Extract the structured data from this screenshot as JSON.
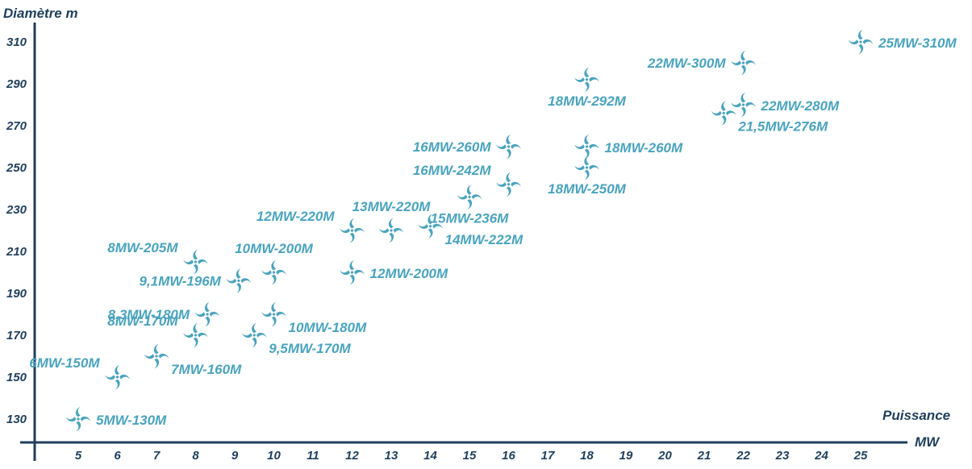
{
  "chart_data": {
    "type": "scatter",
    "title": "",
    "xlabel": "Puissance MW",
    "xlabel_lines": [
      "Puissance",
      "MW"
    ],
    "ylabel": "Diamètre m",
    "x_ticks": [
      "5",
      "6",
      "7",
      "8",
      "9",
      "10",
      "11",
      "12",
      "13",
      "14",
      "15",
      "16",
      "17",
      "18",
      "19",
      "20",
      "21",
      "22",
      "23",
      "24",
      "25"
    ],
    "y_ticks": [
      "130",
      "150",
      "170",
      "190",
      "210",
      "230",
      "250",
      "270",
      "290",
      "310"
    ],
    "xlim": [
      4.2,
      26.2
    ],
    "ylim": [
      118,
      322
    ],
    "grid": false,
    "marker": "wind-turbine-icon",
    "colors": {
      "marker": "#4aa3bd",
      "axis": "#1f3f5c"
    },
    "points": [
      {
        "x": 5,
        "y": 130,
        "label": "5MW-130M",
        "label_side": "right"
      },
      {
        "x": 6,
        "y": 150,
        "label": "6MW-150M",
        "label_side": "left-above"
      },
      {
        "x": 7,
        "y": 160,
        "label": "7MW-160M",
        "label_side": "right-below"
      },
      {
        "x": 8,
        "y": 170,
        "label": "8MW-170M",
        "label_side": "left-above"
      },
      {
        "x": 8.3,
        "y": 180,
        "label": "8,3MW-180M",
        "label_side": "left"
      },
      {
        "x": 9.1,
        "y": 196,
        "label": "9,1MW-196M",
        "label_side": "left"
      },
      {
        "x": 8,
        "y": 205,
        "label": "8MW-205M",
        "label_side": "left-above"
      },
      {
        "x": 9.5,
        "y": 170,
        "label": "9,5MW-170M",
        "label_side": "right-below"
      },
      {
        "x": 10,
        "y": 180,
        "label": "10MW-180M",
        "label_side": "right-below"
      },
      {
        "x": 10,
        "y": 200,
        "label": "10MW-200M",
        "label_side": "above"
      },
      {
        "x": 12,
        "y": 200,
        "label": "12MW-200M",
        "label_side": "right"
      },
      {
        "x": 12,
        "y": 220,
        "label": "12MW-220M",
        "label_side": "left-above"
      },
      {
        "x": 13,
        "y": 220,
        "label": "13MW-220M",
        "label_side": "above"
      },
      {
        "x": 14,
        "y": 222,
        "label": "14MW-222M",
        "label_side": "right-below"
      },
      {
        "x": 15,
        "y": 236,
        "label": "15MW-236M",
        "label_side": "below"
      },
      {
        "x": 16,
        "y": 242,
        "label": "16MW-242M",
        "label_side": "left-above"
      },
      {
        "x": 16,
        "y": 260,
        "label": "16MW-260M",
        "label_side": "left"
      },
      {
        "x": 18,
        "y": 250,
        "label": "18MW-250M",
        "label_side": "below"
      },
      {
        "x": 18,
        "y": 260,
        "label": "18MW-260M",
        "label_side": "right"
      },
      {
        "x": 18,
        "y": 292,
        "label": "18MW-292M",
        "label_side": "below"
      },
      {
        "x": 21.5,
        "y": 276,
        "label": "21,5MW-276M",
        "label_side": "right-below"
      },
      {
        "x": 22,
        "y": 280,
        "label": "22MW-280M",
        "label_side": "right"
      },
      {
        "x": 22,
        "y": 300,
        "label": "22MW-300M",
        "label_side": "left"
      },
      {
        "x": 25,
        "y": 310,
        "label": "25MW-310M",
        "label_side": "right"
      }
    ]
  }
}
